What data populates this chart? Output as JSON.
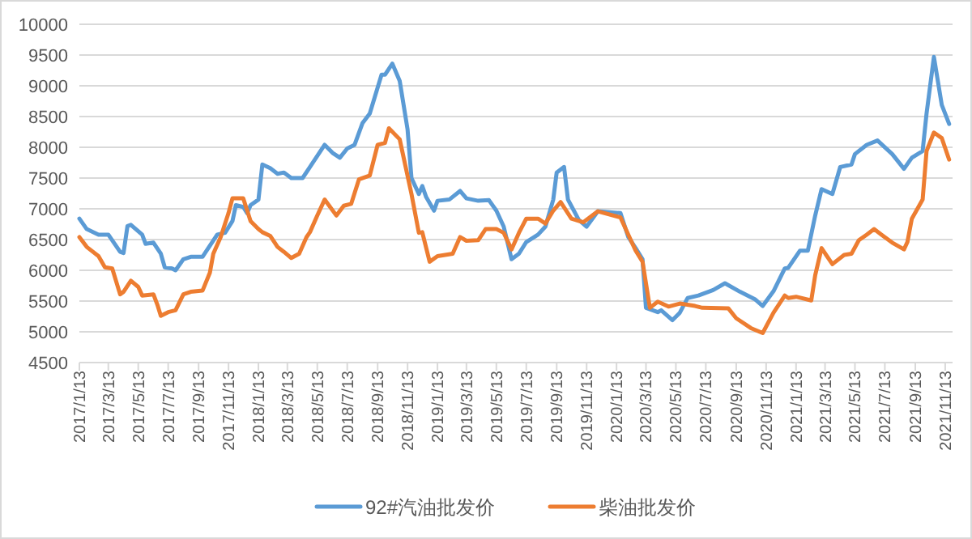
{
  "chart_data": {
    "type": "line",
    "ylim": [
      4500,
      10000
    ],
    "yticks": [
      4500,
      5000,
      5500,
      6000,
      6500,
      7000,
      7500,
      8000,
      8500,
      9000,
      9500,
      10000
    ],
    "xlim": [
      "2017-01-13",
      "2021-11-28"
    ],
    "xticks": [
      {
        "value": "2017-01-13",
        "label": "2017/1/13"
      },
      {
        "value": "2017-03-13",
        "label": "2017/3/13"
      },
      {
        "value": "2017-05-13",
        "label": "2017/5/13"
      },
      {
        "value": "2017-07-13",
        "label": "2017/7/13"
      },
      {
        "value": "2017-09-13",
        "label": "2017/9/13"
      },
      {
        "value": "2017-11-13",
        "label": "2017/11/13"
      },
      {
        "value": "2018-01-13",
        "label": "2018/1/13"
      },
      {
        "value": "2018-03-13",
        "label": "2018/3/13"
      },
      {
        "value": "2018-05-13",
        "label": "2018/5/13"
      },
      {
        "value": "2018-07-13",
        "label": "2018/7/13"
      },
      {
        "value": "2018-09-13",
        "label": "2018/9/13"
      },
      {
        "value": "2018-11-13",
        "label": "2018/11/13"
      },
      {
        "value": "2019-01-13",
        "label": "2019/1/13"
      },
      {
        "value": "2019-03-13",
        "label": "2019/3/13"
      },
      {
        "value": "2019-05-13",
        "label": "2019/5/13"
      },
      {
        "value": "2019-07-13",
        "label": "2019/7/13"
      },
      {
        "value": "2019-09-13",
        "label": "2019/9/13"
      },
      {
        "value": "2019-11-13",
        "label": "2019/11/13"
      },
      {
        "value": "2020-01-13",
        "label": "2020/1/13"
      },
      {
        "value": "2020-03-13",
        "label": "2020/3/13"
      },
      {
        "value": "2020-05-13",
        "label": "2020/5/13"
      },
      {
        "value": "2020-07-13",
        "label": "2020/7/13"
      },
      {
        "value": "2020-09-13",
        "label": "2020/9/13"
      },
      {
        "value": "2020-11-13",
        "label": "2020/11/13"
      },
      {
        "value": "2021-01-13",
        "label": "2021/1/13"
      },
      {
        "value": "2021-03-13",
        "label": "2021/3/13"
      },
      {
        "value": "2021-05-13",
        "label": "2021/5/13"
      },
      {
        "value": "2021-07-13",
        "label": "2021/7/13"
      },
      {
        "value": "2021-09-13",
        "label": "2021/9/13"
      },
      {
        "value": "2021-11-13",
        "label": "2021/11/13"
      }
    ],
    "grid": "y",
    "legend": "bottom",
    "marker": "none",
    "line_style": "solid",
    "series": [
      {
        "name": "92#汽油批发价",
        "color": "#5b9bd5",
        "x": [
          "2017-01-13",
          "2017-01-28",
          "2017-02-21",
          "2017-03-13",
          "2017-04-06",
          "2017-04-13",
          "2017-04-21",
          "2017-04-28",
          "2017-05-21",
          "2017-05-28",
          "2017-06-13",
          "2017-06-28",
          "2017-07-06",
          "2017-07-21",
          "2017-07-28",
          "2017-08-13",
          "2017-08-28",
          "2017-09-21",
          "2017-10-06",
          "2017-10-21",
          "2017-11-06",
          "2017-11-21",
          "2017-11-28",
          "2017-12-13",
          "2017-12-21",
          "2017-12-28",
          "2018-01-13",
          "2018-01-21",
          "2018-02-06",
          "2018-02-21",
          "2018-03-06",
          "2018-03-21",
          "2018-04-13",
          "2018-04-28",
          "2018-05-28",
          "2018-06-13",
          "2018-06-28",
          "2018-07-13",
          "2018-07-28",
          "2018-08-13",
          "2018-08-28",
          "2018-09-21",
          "2018-09-28",
          "2018-10-13",
          "2018-10-28",
          "2018-11-13",
          "2018-11-21",
          "2018-12-06",
          "2018-12-13",
          "2018-12-21",
          "2019-01-06",
          "2019-01-13",
          "2019-02-06",
          "2019-02-28",
          "2019-03-13",
          "2019-04-06",
          "2019-04-28",
          "2019-05-13",
          "2019-05-28",
          "2019-06-13",
          "2019-06-28",
          "2019-07-13",
          "2019-08-06",
          "2019-08-21",
          "2019-09-06",
          "2019-09-13",
          "2019-09-28",
          "2019-10-06",
          "2019-10-28",
          "2019-11-13",
          "2019-12-06",
          "2020-01-21",
          "2020-02-06",
          "2020-02-21",
          "2020-03-06",
          "2020-03-13",
          "2020-04-06",
          "2020-04-13",
          "2020-05-06",
          "2020-05-21",
          "2020-06-06",
          "2020-06-28",
          "2020-07-28",
          "2020-08-21",
          "2020-09-21",
          "2020-10-21",
          "2020-11-06",
          "2020-11-28",
          "2020-12-21",
          "2020-12-28",
          "2021-01-21",
          "2021-02-06",
          "2021-02-21",
          "2021-03-06",
          "2021-03-28",
          "2021-04-13",
          "2021-05-06",
          "2021-05-13",
          "2021-06-06",
          "2021-06-28",
          "2021-07-28",
          "2021-08-21",
          "2021-09-06",
          "2021-09-28",
          "2021-10-06",
          "2021-10-21",
          "2021-11-06",
          "2021-11-21"
        ],
        "values": [
          6840,
          6670,
          6580,
          6580,
          6300,
          6280,
          6720,
          6740,
          6580,
          6430,
          6450,
          6270,
          6050,
          6030,
          6000,
          6180,
          6220,
          6220,
          6400,
          6580,
          6610,
          6800,
          7060,
          7030,
          6930,
          7060,
          7150,
          7720,
          7660,
          7570,
          7590,
          7500,
          7500,
          7680,
          8040,
          7910,
          7830,
          7980,
          8040,
          8390,
          8550,
          9180,
          9180,
          9360,
          9080,
          8290,
          7500,
          7240,
          7370,
          7190,
          6970,
          7130,
          7150,
          7290,
          7170,
          7130,
          7140,
          6970,
          6710,
          6180,
          6270,
          6460,
          6580,
          6710,
          7150,
          7590,
          7680,
          7150,
          6820,
          6710,
          6960,
          6930,
          6540,
          6360,
          6180,
          5390,
          5320,
          5350,
          5190,
          5310,
          5550,
          5590,
          5680,
          5790,
          5650,
          5530,
          5420,
          5660,
          6030,
          6040,
          6320,
          6320,
          6890,
          7320,
          7240,
          7680,
          7720,
          7890,
          8040,
          8110,
          7890,
          7650,
          7830,
          7940,
          8550,
          9470,
          8690,
          8380
        ]
      },
      {
        "name": "柴油批发价",
        "color": "#ed7d31",
        "x": [
          "2017-01-13",
          "2017-01-28",
          "2017-02-21",
          "2017-03-06",
          "2017-03-21",
          "2017-04-06",
          "2017-04-13",
          "2017-04-28",
          "2017-05-13",
          "2017-05-21",
          "2017-06-13",
          "2017-06-21",
          "2017-06-28",
          "2017-07-13",
          "2017-07-28",
          "2017-08-13",
          "2017-08-28",
          "2017-09-21",
          "2017-10-06",
          "2017-10-13",
          "2017-10-28",
          "2017-11-13",
          "2017-11-21",
          "2017-12-13",
          "2017-12-28",
          "2018-01-13",
          "2018-01-21",
          "2018-02-06",
          "2018-02-21",
          "2018-03-06",
          "2018-03-21",
          "2018-04-06",
          "2018-04-21",
          "2018-04-28",
          "2018-05-13",
          "2018-05-28",
          "2018-06-21",
          "2018-07-06",
          "2018-07-21",
          "2018-08-06",
          "2018-08-28",
          "2018-09-13",
          "2018-09-28",
          "2018-10-06",
          "2018-10-28",
          "2018-11-21",
          "2018-12-06",
          "2018-12-13",
          "2018-12-28",
          "2019-01-13",
          "2019-02-13",
          "2019-02-28",
          "2019-03-13",
          "2019-04-06",
          "2019-04-21",
          "2019-05-13",
          "2019-05-28",
          "2019-06-13",
          "2019-06-28",
          "2019-07-13",
          "2019-08-06",
          "2019-08-21",
          "2019-09-06",
          "2019-09-21",
          "2019-10-13",
          "2019-11-06",
          "2019-12-06",
          "2020-01-21",
          "2020-02-06",
          "2020-02-21",
          "2020-03-06",
          "2020-03-21",
          "2020-04-06",
          "2020-04-28",
          "2020-05-21",
          "2020-06-21",
          "2020-07-06",
          "2020-08-28",
          "2020-09-13",
          "2020-10-13",
          "2020-11-06",
          "2020-11-28",
          "2020-12-21",
          "2020-12-28",
          "2021-01-13",
          "2021-02-13",
          "2021-02-21",
          "2021-03-06",
          "2021-03-28",
          "2021-04-21",
          "2021-05-06",
          "2021-05-21",
          "2021-06-06",
          "2021-06-21",
          "2021-07-06",
          "2021-07-28",
          "2021-08-21",
          "2021-08-28",
          "2021-09-06",
          "2021-09-28",
          "2021-10-06",
          "2021-10-21",
          "2021-11-06",
          "2021-11-21"
        ],
        "values": [
          6540,
          6380,
          6230,
          6050,
          6030,
          5610,
          5650,
          5830,
          5730,
          5590,
          5610,
          5440,
          5260,
          5320,
          5350,
          5610,
          5650,
          5670,
          5960,
          6270,
          6540,
          6930,
          7170,
          7170,
          6800,
          6670,
          6620,
          6560,
          6380,
          6300,
          6200,
          6270,
          6540,
          6620,
          6890,
          7150,
          6890,
          7050,
          7080,
          7480,
          7540,
          8040,
          8070,
          8310,
          8130,
          7240,
          6610,
          6620,
          6140,
          6230,
          6270,
          6540,
          6480,
          6490,
          6670,
          6670,
          6610,
          6340,
          6610,
          6840,
          6840,
          6760,
          6970,
          7110,
          6840,
          6780,
          6960,
          6860,
          6580,
          6320,
          6140,
          5390,
          5490,
          5410,
          5460,
          5420,
          5390,
          5380,
          5220,
          5060,
          4980,
          5310,
          5590,
          5550,
          5570,
          5510,
          5920,
          6360,
          6100,
          6250,
          6270,
          6490,
          6580,
          6670,
          6580,
          6450,
          6340,
          6460,
          6840,
          7150,
          7940,
          8240,
          8150,
          7800
        ]
      }
    ]
  }
}
